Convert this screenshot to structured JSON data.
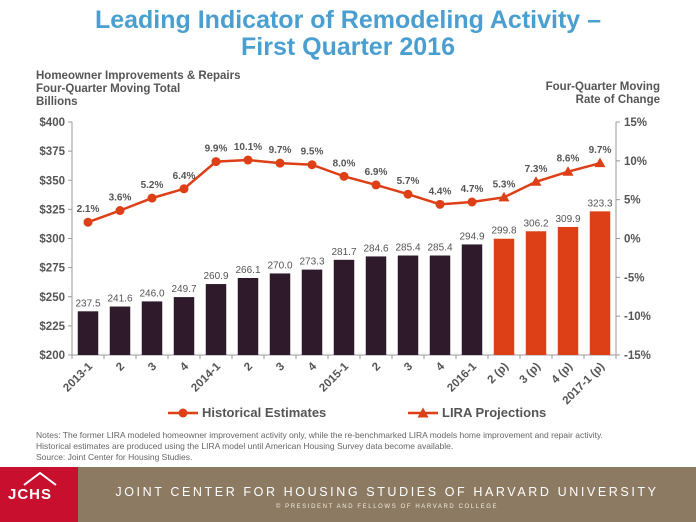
{
  "title_line1": "Leading Indicator of Remodeling Activity –",
  "title_line2": "First Quarter 2016",
  "left_axis_label": [
    "Homeowner Improvements & Repairs",
    "Four-Quarter Moving Total",
    "Billions"
  ],
  "right_axis_label": [
    "Four-Quarter Moving",
    "Rate of Change"
  ],
  "notes": [
    "Notes: The former LIRA modeled homeowner improvement activity only, while the re-benchmarked LIRA models home improvement and repair activity.",
    "Historical estimates are produced using the LIRA model until American Housing Survey data become available.",
    "Source: Joint Center for Housing Studies."
  ],
  "footer": {
    "logo": "JCHS",
    "main": "JOINT CENTER FOR HOUSING STUDIES OF HARVARD UNIVERSITY",
    "sub": "© PRESIDENT AND FELLOWS OF HARVARD COLLEGE"
  },
  "colors": {
    "historical": "#2e1a2b",
    "projection": "#dd3f17",
    "line": "#dd3f17",
    "title": "#4a9fd0",
    "footer": "#8c7a62",
    "logo": "#c8102e"
  },
  "chart_data": {
    "type": "bar+line",
    "categories": [
      "2013-1",
      "2",
      "3",
      "4",
      "2014-1",
      "2",
      "3",
      "4",
      "2015-1",
      "2",
      "3",
      "4",
      "2016-1",
      "2 (p)",
      "3 (p)",
      "4 (p)",
      "2017-1 (p)"
    ],
    "bars": {
      "values": [
        237.5,
        241.6,
        246.0,
        249.7,
        260.9,
        266.1,
        270.0,
        273.3,
        281.7,
        284.6,
        285.4,
        285.4,
        294.9,
        299.8,
        306.2,
        309.9,
        323.3
      ],
      "labels": [
        "237.5",
        "241.6",
        "246.0",
        "249.7",
        "260.9",
        "266.1",
        "270.0",
        "273.3",
        "281.7",
        "284.6",
        "285.4",
        "285.4",
        "294.9",
        "299.8",
        "306.2",
        "309.9",
        "323.3"
      ],
      "projection_start_index": 13
    },
    "rate_of_change": {
      "values": [
        2.1,
        3.6,
        5.2,
        6.4,
        9.9,
        10.1,
        9.7,
        9.5,
        8.0,
        6.9,
        5.7,
        4.4,
        4.7,
        5.3,
        7.3,
        8.6,
        9.7
      ],
      "labels": [
        "2.1%",
        "3.6%",
        "5.2%",
        "6.4%",
        "9.9%",
        "10.1%",
        "9.7%",
        "9.5%",
        "8.0%",
        "6.9%",
        "5.7%",
        "4.4%",
        "4.7%",
        "5.3%",
        "7.3%",
        "8.6%",
        "9.7%"
      ],
      "projection_start_index": 13
    },
    "left_axis": {
      "min": 200,
      "max": 400,
      "ticks": [
        "$200",
        "$225",
        "$250",
        "$275",
        "$300",
        "$325",
        "$350",
        "$375",
        "$400"
      ]
    },
    "right_axis": {
      "min": -15,
      "max": 15,
      "ticks": [
        "-15%",
        "-10%",
        "-5%",
        "0%",
        "5%",
        "10%",
        "15%"
      ]
    },
    "legend": [
      {
        "name": "Historical Estimates",
        "marker": "circle"
      },
      {
        "name": "LIRA Projections",
        "marker": "triangle"
      }
    ]
  }
}
